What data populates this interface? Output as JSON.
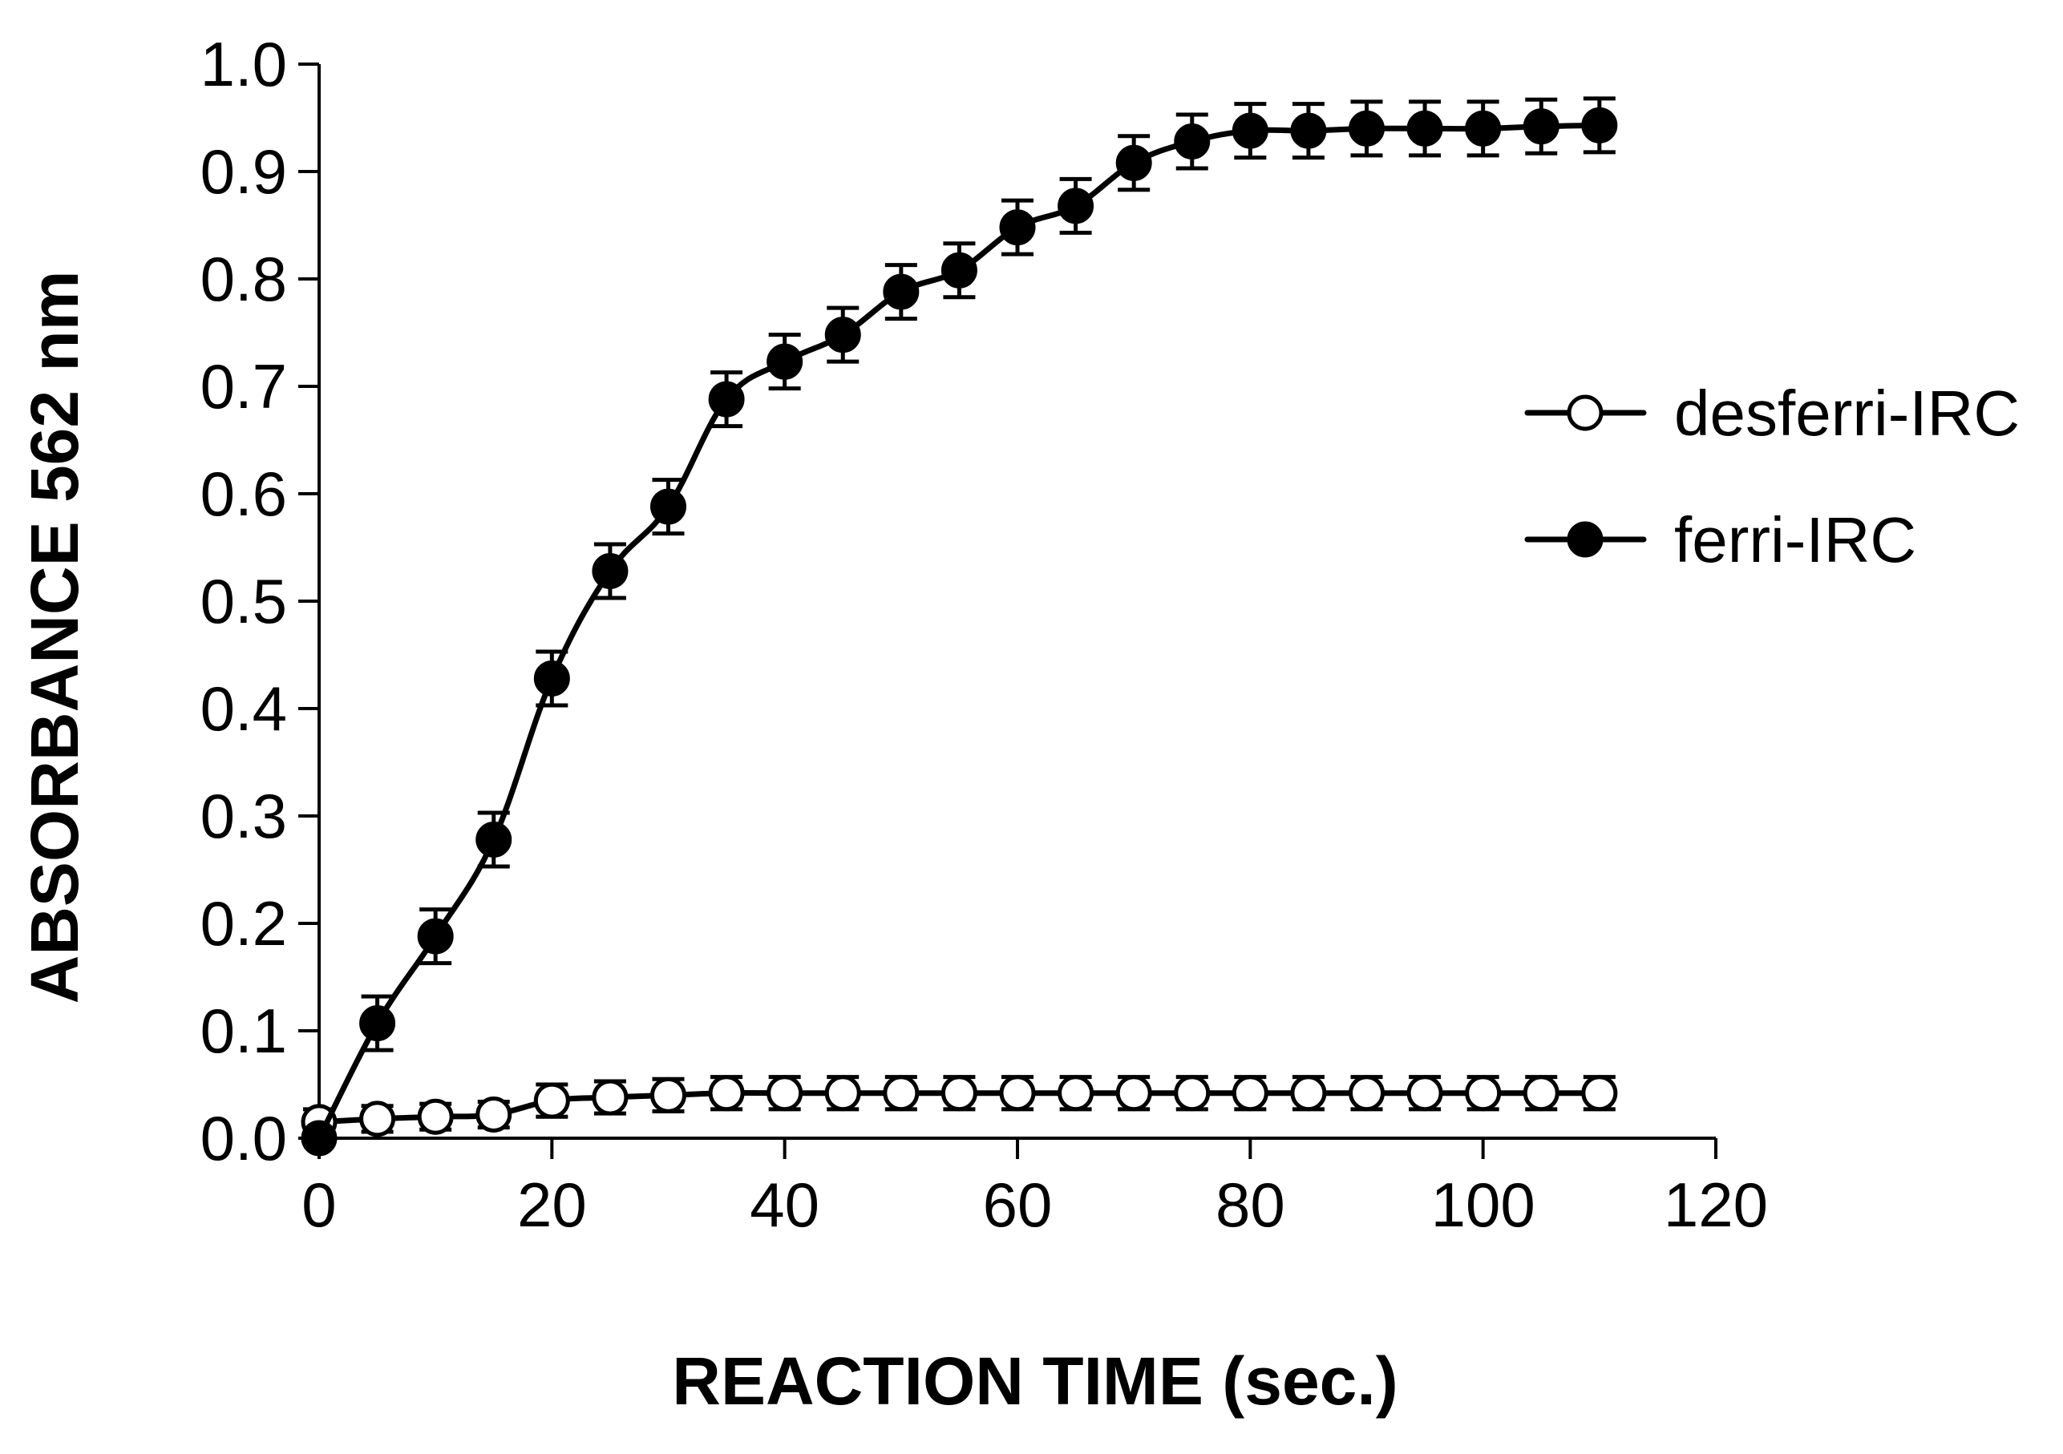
{
  "chart_data": {
    "type": "line",
    "title": "",
    "xlabel": "REACTION TIME (sec.)",
    "ylabel": "ABSORBANCE 562 nm",
    "xlim": [
      0,
      120
    ],
    "ylim": [
      0,
      1.0
    ],
    "x_ticks": [
      0,
      20,
      40,
      60,
      80,
      100,
      120
    ],
    "x_tick_labels": [
      "0",
      "20",
      "40",
      "60",
      "80",
      "100",
      "120"
    ],
    "y_ticks": [
      0,
      0.1,
      0.2,
      0.3,
      0.4,
      0.5,
      0.6,
      0.7,
      0.8,
      0.9,
      1.0
    ],
    "y_tick_labels": [
      "0.0",
      "0.1",
      "0.2",
      "0.3",
      "0.4",
      "0.5",
      "0.6",
      "0.7",
      "0.8",
      "0.9",
      "1.0"
    ],
    "grid": false,
    "legend_position": "right",
    "series": [
      {
        "name": "desferri-IRC",
        "marker": "open-circle",
        "x": [
          0,
          5,
          10,
          15,
          20,
          25,
          30,
          35,
          40,
          45,
          50,
          55,
          60,
          65,
          70,
          75,
          80,
          85,
          90,
          95,
          100,
          105,
          110
        ],
        "y": [
          0.015,
          0.018,
          0.02,
          0.022,
          0.035,
          0.038,
          0.04,
          0.042,
          0.042,
          0.042,
          0.042,
          0.042,
          0.042,
          0.042,
          0.042,
          0.042,
          0.042,
          0.042,
          0.042,
          0.042,
          0.042,
          0.042,
          0.042
        ],
        "error": [
          0.012,
          0.012,
          0.012,
          0.012,
          0.015,
          0.015,
          0.015,
          0.015,
          0.015,
          0.015,
          0.015,
          0.015,
          0.015,
          0.015,
          0.015,
          0.015,
          0.015,
          0.015,
          0.015,
          0.015,
          0.015,
          0.015,
          0.015
        ]
      },
      {
        "name": "ferri-IRC",
        "marker": "filled-circle",
        "x": [
          0,
          5,
          10,
          15,
          20,
          25,
          30,
          35,
          40,
          45,
          50,
          55,
          60,
          65,
          70,
          75,
          80,
          85,
          90,
          95,
          100,
          105,
          110
        ],
        "y": [
          0.0,
          0.107,
          0.188,
          0.278,
          0.428,
          0.528,
          0.588,
          0.688,
          0.723,
          0.748,
          0.788,
          0.808,
          0.848,
          0.868,
          0.908,
          0.928,
          0.938,
          0.938,
          0.94,
          0.94,
          0.94,
          0.942,
          0.943
        ],
        "error": [
          0.0,
          0.025,
          0.025,
          0.025,
          0.025,
          0.025,
          0.025,
          0.025,
          0.025,
          0.025,
          0.025,
          0.025,
          0.025,
          0.025,
          0.025,
          0.025,
          0.025,
          0.025,
          0.025,
          0.025,
          0.025,
          0.025,
          0.025
        ]
      }
    ]
  }
}
